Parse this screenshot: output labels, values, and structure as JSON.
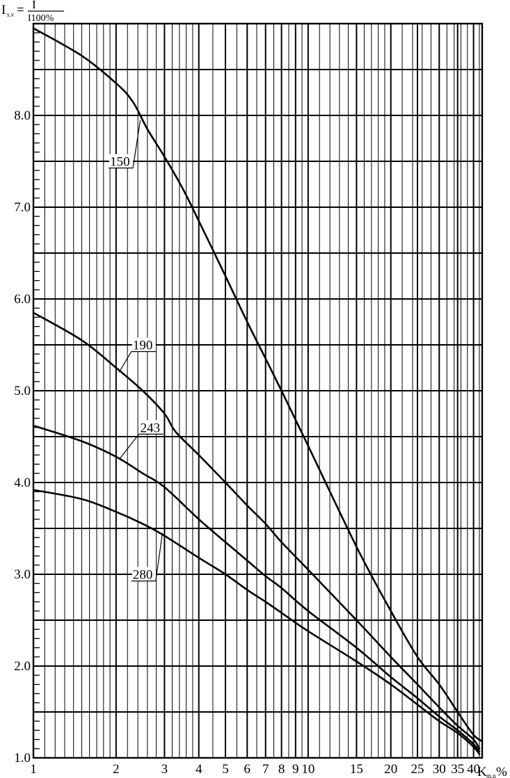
{
  "chart_data": {
    "type": "line",
    "y_axis": {
      "label_main": "I",
      "label_sub": "s.v",
      "label_eq": "=",
      "fraction_num": "I",
      "fraction_den": "I100%",
      "ylim": [
        1.0,
        9.0
      ],
      "tick_labels": [
        {
          "value": 1.0,
          "text": "1.0"
        },
        {
          "value": 2.0,
          "text": "2.0"
        },
        {
          "value": 3.0,
          "text": "3.0"
        },
        {
          "value": 4.0,
          "text": "4.0"
        },
        {
          "value": 5.0,
          "text": "5.0"
        },
        {
          "value": 6.0,
          "text": "6.0"
        },
        {
          "value": 7.0,
          "text": "7.0"
        },
        {
          "value": 8.0,
          "text": "8.0"
        }
      ],
      "major_gridlines": [
        1.5,
        2.0,
        2.5,
        3.0,
        3.5,
        4.0,
        4.5,
        5.0,
        5.5,
        6.0,
        6.5,
        7.0,
        7.5,
        8.0,
        8.5
      ]
    },
    "x_axis": {
      "scale": "log",
      "label_main": "K",
      "label_sub": "m.n",
      "label_unit": "%",
      "xlim": [
        1,
        43
      ],
      "tick_labels": [
        {
          "value": 1,
          "text": "1"
        },
        {
          "value": 2,
          "text": "2"
        },
        {
          "value": 3,
          "text": "3"
        },
        {
          "value": 4,
          "text": "4"
        },
        {
          "value": 5,
          "text": "5"
        },
        {
          "value": 6,
          "text": "6"
        },
        {
          "value": 7,
          "text": "7"
        },
        {
          "value": 8,
          "text": "8"
        },
        {
          "value": 9,
          "text": "9"
        },
        {
          "value": 10,
          "text": "10"
        },
        {
          "value": 15,
          "text": "15"
        },
        {
          "value": 20,
          "text": "20"
        },
        {
          "value": 25,
          "text": "25"
        },
        {
          "value": 30,
          "text": "30"
        },
        {
          "value": 35,
          "text": "35"
        },
        {
          "value": 40,
          "text": "40"
        }
      ],
      "major_gridlines": [
        2,
        3,
        4,
        5,
        6,
        7,
        8,
        9,
        10,
        15,
        20,
        25,
        30,
        35,
        40
      ]
    },
    "grid": true,
    "series": [
      {
        "name": "150",
        "points": [
          [
            1,
            8.95
          ],
          [
            1.5,
            8.65
          ],
          [
            2,
            8.35
          ],
          [
            2.3,
            8.15
          ],
          [
            2.6,
            7.85
          ],
          [
            3,
            7.55
          ],
          [
            3.5,
            7.2
          ],
          [
            4,
            6.85
          ],
          [
            5,
            6.25
          ],
          [
            6,
            5.75
          ],
          [
            7,
            5.35
          ],
          [
            8,
            5.0
          ],
          [
            10,
            4.4
          ],
          [
            15,
            3.3
          ],
          [
            20,
            2.6
          ],
          [
            25,
            2.1
          ],
          [
            30,
            1.8
          ],
          [
            35,
            1.5
          ],
          [
            40,
            1.25
          ],
          [
            43,
            1.18
          ]
        ]
      },
      {
        "name": "190",
        "points": [
          [
            1,
            5.85
          ],
          [
            1.5,
            5.55
          ],
          [
            2,
            5.25
          ],
          [
            2.5,
            5.0
          ],
          [
            3,
            4.75
          ],
          [
            3.3,
            4.55
          ],
          [
            4,
            4.3
          ],
          [
            5,
            4.0
          ],
          [
            6,
            3.75
          ],
          [
            7,
            3.55
          ],
          [
            8,
            3.35
          ],
          [
            10,
            3.05
          ],
          [
            15,
            2.5
          ],
          [
            20,
            2.1
          ],
          [
            25,
            1.8
          ],
          [
            30,
            1.55
          ],
          [
            35,
            1.35
          ],
          [
            40,
            1.2
          ],
          [
            42,
            1.1
          ]
        ]
      },
      {
        "name": "243",
        "points": [
          [
            1,
            4.62
          ],
          [
            1.5,
            4.45
          ],
          [
            2,
            4.28
          ],
          [
            2.5,
            4.1
          ],
          [
            3,
            3.95
          ],
          [
            4,
            3.6
          ],
          [
            5,
            3.35
          ],
          [
            6,
            3.15
          ],
          [
            7,
            2.98
          ],
          [
            8,
            2.85
          ],
          [
            10,
            2.6
          ],
          [
            15,
            2.2
          ],
          [
            20,
            1.88
          ],
          [
            25,
            1.65
          ],
          [
            30,
            1.45
          ],
          [
            35,
            1.3
          ],
          [
            40,
            1.15
          ],
          [
            42,
            1.07
          ]
        ]
      },
      {
        "name": "280",
        "points": [
          [
            1,
            3.92
          ],
          [
            1.5,
            3.82
          ],
          [
            2,
            3.68
          ],
          [
            2.5,
            3.55
          ],
          [
            3,
            3.42
          ],
          [
            4,
            3.18
          ],
          [
            5,
            3.0
          ],
          [
            6,
            2.83
          ],
          [
            7,
            2.7
          ],
          [
            8,
            2.58
          ],
          [
            10,
            2.38
          ],
          [
            15,
            2.05
          ],
          [
            20,
            1.8
          ],
          [
            25,
            1.58
          ],
          [
            30,
            1.4
          ],
          [
            35,
            1.27
          ],
          [
            40,
            1.12
          ],
          [
            42,
            1.04
          ]
        ]
      }
    ],
    "annotations": [
      {
        "text": "150",
        "label_at": [
          1.9,
          7.45
        ],
        "points_to": [
          2.45,
          7.95
        ]
      },
      {
        "text": "190",
        "label_at": [
          2.3,
          5.45
        ],
        "points_to": [
          2.05,
          5.2
        ]
      },
      {
        "text": "243",
        "label_at": [
          2.45,
          4.55
        ],
        "points_to": [
          2.05,
          4.25
        ]
      },
      {
        "text": "280",
        "label_at": [
          2.3,
          2.95
        ],
        "points_to": [
          2.95,
          3.45
        ]
      }
    ]
  }
}
